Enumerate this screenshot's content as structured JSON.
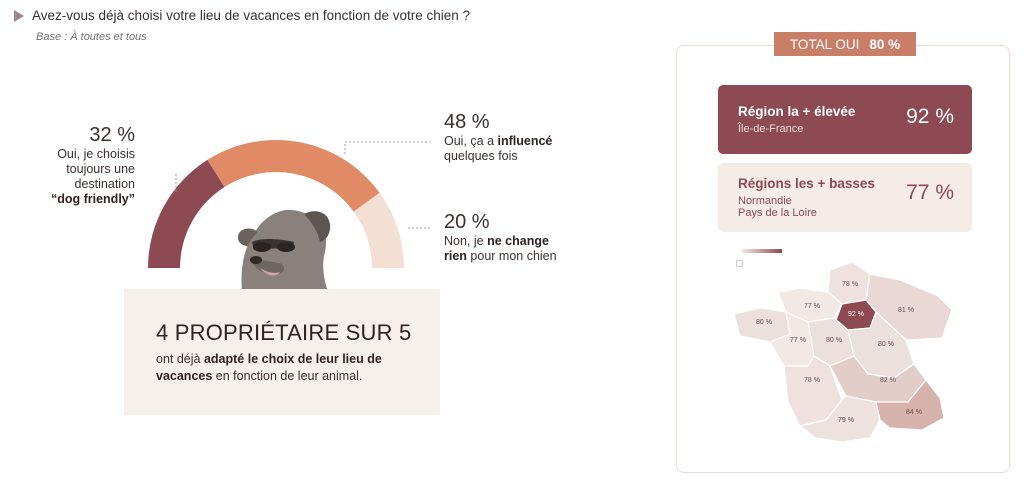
{
  "question": "Avez-vous déjà choisi votre lieu de vacances en fonction de votre chien ?",
  "base": "Base : À toutes et tous",
  "chart_data": {
    "type": "pie",
    "subtype": "semi-donut",
    "categories": [
      "Oui, je choisis toujours une destination “dog friendly”",
      "Oui, ça a influencé quelques fois",
      "Non, je ne change rien pour mon chien"
    ],
    "values": [
      32,
      48,
      20
    ],
    "colors": [
      "#8d4a52",
      "#e08a66",
      "#f3dfd3"
    ],
    "labels": [
      "32 %",
      "48 %",
      "20 %"
    ]
  },
  "answers": {
    "a32": {
      "pct": "32 %",
      "l1": "Oui, je choisis",
      "l2": "toujours une",
      "l3": "destination",
      "l4": "“dog friendly”"
    },
    "a48": {
      "pct": "48 %",
      "l1a": "Oui, ça a ",
      "l1b": "influencé",
      "l2": "quelques fois"
    },
    "a20": {
      "pct": "20 %",
      "l1a": "Non, je ",
      "l1b": "ne change",
      "l2a": "rien",
      "l2b": " pour mon chien"
    }
  },
  "stat": {
    "headline": "4 PROPRIÉTAIRE SUR 5",
    "t1": "ont déjà ",
    "t2": "adapté le choix de leur lieu de vacances",
    "t3": " en fonction de leur animal."
  },
  "total": {
    "label": "TOTAL OUI",
    "value": "80 %"
  },
  "region_high": {
    "title": "Région la + élevée",
    "name": "Île-de-France",
    "value": "92 %"
  },
  "region_low": {
    "title": "Régions les + basses",
    "names": [
      "Normandie",
      "Pays de la Loire"
    ],
    "value": "77 %"
  },
  "map": {
    "regions": [
      {
        "name": "Hauts-de-France",
        "label": "78 %",
        "color": "#efe2de"
      },
      {
        "name": "Normandie",
        "label": "77 %",
        "color": "#f2e8e4"
      },
      {
        "name": "Île-de-France",
        "label": "92 %",
        "color": "#8d4a52"
      },
      {
        "name": "Grand Est",
        "label": "81 %",
        "color": "#e9d8d4"
      },
      {
        "name": "Bretagne",
        "label": "80 %",
        "color": "#ece0dc"
      },
      {
        "name": "Pays de la Loire",
        "label": "77 %",
        "color": "#f2e8e4"
      },
      {
        "name": "Centre-Val de Loire",
        "label": "80 %",
        "color": "#ece0dc"
      },
      {
        "name": "Bourgogne-Franche-Comté",
        "label": "80 %",
        "color": "#ece0dc"
      },
      {
        "name": "Nouvelle-Aquitaine",
        "label": "78 %",
        "color": "#efe2de"
      },
      {
        "name": "Auvergne-Rhône-Alpes",
        "label": "82 %",
        "color": "#e3cdc8"
      },
      {
        "name": "Occitanie",
        "label": "79 %",
        "color": "#ede2de"
      },
      {
        "name": "Provence-Alpes-Côte d'Azur",
        "label": "84 %",
        "color": "#d6b2ac"
      }
    ]
  }
}
